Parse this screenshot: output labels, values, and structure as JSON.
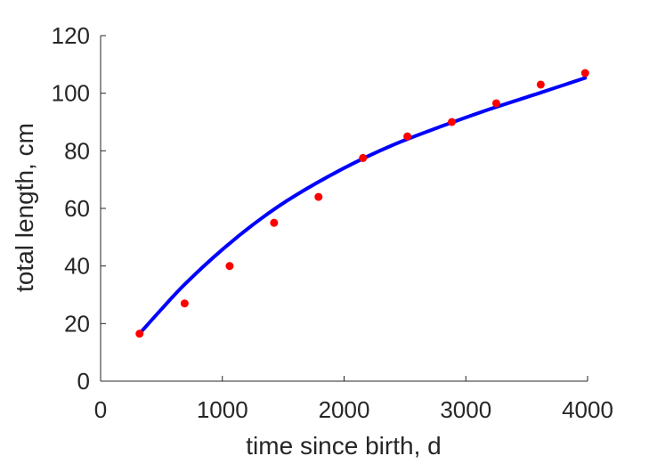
{
  "chart_data": {
    "type": "scatter",
    "xlabel": "time since birth, d",
    "ylabel": "total length, cm",
    "xlim": [
      0,
      4000
    ],
    "ylim": [
      0,
      120
    ],
    "xticks": [
      "0",
      "1000",
      "2000",
      "3000",
      "4000"
    ],
    "yticks": [
      "0",
      "20",
      "40",
      "60",
      "80",
      "100",
      "120"
    ],
    "grid": false,
    "colors": {
      "points": "#ff0000",
      "fit_line": "#0000ff",
      "axes": "#262626"
    },
    "series": [
      {
        "kind": "points",
        "x": [
          320,
          690,
          1060,
          1425,
          1790,
          2155,
          2520,
          2885,
          3250,
          3615,
          3980
        ],
        "y": [
          16.5,
          27,
          40,
          55,
          64,
          77.5,
          85,
          90,
          96.5,
          103,
          107
        ]
      },
      {
        "kind": "fit-line",
        "x": [
          320,
          500,
          700,
          1000,
          1300,
          1600,
          2000,
          2400,
          2800,
          3200,
          3600,
          3980
        ],
        "y": [
          16.5,
          25,
          34,
          45.7,
          55.9,
          64.5,
          74,
          82,
          88.5,
          94.5,
          100,
          105.3
        ]
      }
    ]
  }
}
